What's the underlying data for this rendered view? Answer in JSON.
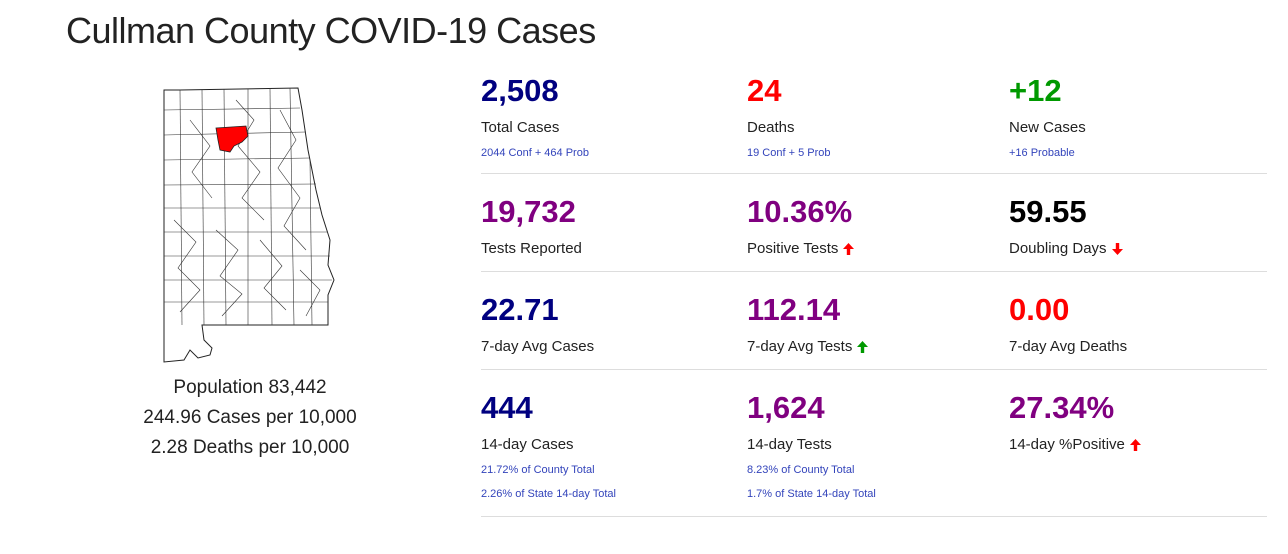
{
  "page": {
    "title": "Cullman County COVID-19 Cases"
  },
  "county": {
    "population": "Population 83,442",
    "cases_per": "244.96 Cases per 10,000",
    "deaths_per": "2.28 Deaths per 10,000"
  },
  "colors": {
    "highlight_county": "#ff0000",
    "navy": "#000080",
    "purple": "#800080",
    "red": "#ff0000",
    "green": "#009900"
  },
  "stats": {
    "total_cases": {
      "value": "2,508",
      "label": "Total Cases",
      "sub": "2044 Conf + 464 Prob"
    },
    "deaths": {
      "value": "24",
      "label": "Deaths",
      "sub": "19 Conf + 5 Prob"
    },
    "new_cases": {
      "value": "+12",
      "label": "New Cases",
      "sub": "+16 Probable"
    },
    "tests_reported": {
      "value": "19,732",
      "label": "Tests Reported"
    },
    "positive_tests": {
      "value": "10.36%",
      "label": "Positive Tests",
      "trend_icon": "arrow-up-red"
    },
    "doubling_days": {
      "value": "59.55",
      "label": "Doubling Days",
      "trend_icon": "arrow-down-red"
    },
    "avg7_cases": {
      "value": "22.71",
      "label": "7-day Avg Cases"
    },
    "avg7_tests": {
      "value": "112.14",
      "label": "7-day Avg Tests",
      "trend_icon": "arrow-up-green"
    },
    "avg7_deaths": {
      "value": "0.00",
      "label": "7-day Avg Deaths"
    },
    "d14_cases": {
      "value": "444",
      "label": "14-day Cases",
      "sub1": "21.72% of County Total",
      "sub2": "2.26% of State 14-day Total"
    },
    "d14_tests": {
      "value": "1,624",
      "label": "14-day Tests",
      "sub1": "8.23% of County Total",
      "sub2": "1.7% of State 14-day Total"
    },
    "d14_positive": {
      "value": "27.34%",
      "label": "14-day %Positive",
      "trend_icon": "arrow-up-red"
    }
  }
}
